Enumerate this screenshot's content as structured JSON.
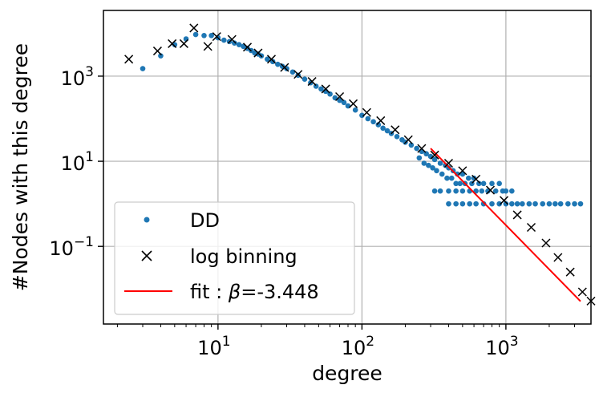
{
  "chart_data": {
    "type": "scatter",
    "title": "",
    "xlabel": "degree",
    "ylabel": "#Nodes with this degree",
    "xscale": "log",
    "yscale": "log",
    "xlim": [
      1.6,
      3900
    ],
    "ylim": [
      0.0015,
      35000
    ],
    "grid": true,
    "legend_location": "lower-left",
    "x_ticks": [
      {
        "value": 10,
        "base": "10",
        "exp": "1"
      },
      {
        "value": 100,
        "base": "10",
        "exp": "2"
      },
      {
        "value": 1000,
        "base": "10",
        "exp": "3"
      }
    ],
    "y_ticks": [
      {
        "value": 0.1,
        "base": "10",
        "exp": "−1"
      },
      {
        "value": 10,
        "base": "10",
        "exp": "1"
      },
      {
        "value": 1000,
        "base": "10",
        "exp": "3"
      }
    ],
    "series": [
      {
        "name": "DD",
        "style": "dots",
        "color": "#1f77b4",
        "points": [
          [
            3,
            1500
          ],
          [
            4,
            3000
          ],
          [
            5,
            5500
          ],
          [
            6,
            7500
          ],
          [
            7,
            9500
          ],
          [
            8,
            9000
          ],
          [
            9,
            9000
          ],
          [
            10,
            8000
          ],
          [
            11,
            7000
          ],
          [
            12,
            6500
          ],
          [
            13,
            6000
          ],
          [
            14,
            5500
          ],
          [
            15,
            5000
          ],
          [
            16,
            4500
          ],
          [
            17,
            4000
          ],
          [
            18,
            3500
          ],
          [
            19,
            3300
          ],
          [
            20,
            3000
          ],
          [
            22,
            2500
          ],
          [
            24,
            2200
          ],
          [
            26,
            1900
          ],
          [
            28,
            1700
          ],
          [
            30,
            1500
          ],
          [
            33,
            1250
          ],
          [
            36,
            1050
          ],
          [
            40,
            850
          ],
          [
            44,
            700
          ],
          [
            48,
            580
          ],
          [
            52,
            500
          ],
          [
            56,
            440
          ],
          [
            60,
            380
          ],
          [
            65,
            310
          ],
          [
            70,
            270
          ],
          [
            75,
            240
          ],
          [
            80,
            200
          ],
          [
            90,
            160
          ],
          [
            100,
            120
          ],
          [
            110,
            100
          ],
          [
            120,
            85
          ],
          [
            130,
            72
          ],
          [
            140,
            60
          ],
          [
            150,
            52
          ],
          [
            160,
            45
          ],
          [
            175,
            38
          ],
          [
            190,
            32
          ],
          [
            200,
            28
          ],
          [
            220,
            24
          ],
          [
            240,
            20
          ],
          [
            260,
            17
          ],
          [
            280,
            15
          ],
          [
            300,
            13
          ],
          [
            320,
            11
          ],
          [
            350,
            9
          ],
          [
            380,
            8
          ],
          [
            400,
            7
          ],
          [
            430,
            6
          ],
          [
            460,
            5
          ],
          [
            500,
            5
          ],
          [
            550,
            4
          ],
          [
            600,
            4
          ],
          [
            650,
            3
          ],
          [
            700,
            3
          ],
          [
            800,
            3
          ],
          [
            900,
            3
          ],
          [
            1000,
            2
          ],
          [
            1100,
            2
          ],
          [
            250,
            12
          ],
          [
            270,
            9
          ],
          [
            290,
            8
          ],
          [
            310,
            7
          ],
          [
            330,
            6
          ],
          [
            360,
            5
          ],
          [
            390,
            4
          ],
          [
            420,
            4
          ],
          [
            450,
            3
          ],
          [
            480,
            3
          ],
          [
            520,
            3
          ],
          [
            580,
            3
          ],
          [
            620,
            2
          ],
          [
            680,
            2
          ],
          [
            750,
            2
          ],
          [
            850,
            2
          ],
          [
            950,
            2
          ],
          [
            320,
            2
          ],
          [
            350,
            2
          ],
          [
            400,
            2
          ],
          [
            450,
            2
          ],
          [
            500,
            2
          ],
          [
            560,
            2
          ],
          [
            400,
            1
          ],
          [
            450,
            1
          ],
          [
            500,
            1
          ],
          [
            560,
            1
          ],
          [
            620,
            1
          ],
          [
            700,
            1
          ],
          [
            800,
            1
          ],
          [
            900,
            1
          ],
          [
            1000,
            1
          ],
          [
            1100,
            1
          ],
          [
            1200,
            1
          ],
          [
            1300,
            1
          ],
          [
            1450,
            1
          ],
          [
            1600,
            1
          ],
          [
            1800,
            1
          ],
          [
            2000,
            1
          ],
          [
            2200,
            1
          ],
          [
            2400,
            1
          ],
          [
            2700,
            1
          ],
          [
            3000,
            1
          ],
          [
            3300,
            1
          ]
        ]
      },
      {
        "name": "log binning",
        "style": "x-markers",
        "color": "#000000",
        "points": [
          [
            2.4,
            2500
          ],
          [
            3.8,
            3900
          ],
          [
            4.8,
            5800
          ],
          [
            5.8,
            5800
          ],
          [
            6.8,
            13500
          ],
          [
            8.5,
            5000
          ],
          [
            9.8,
            8500
          ],
          [
            12.5,
            7300
          ],
          [
            16,
            4800
          ],
          [
            19,
            3500
          ],
          [
            23.5,
            2500
          ],
          [
            29,
            1600
          ],
          [
            36,
            1100
          ],
          [
            45,
            750
          ],
          [
            56,
            500
          ],
          [
            70,
            330
          ],
          [
            87,
            225
          ],
          [
            108,
            140
          ],
          [
            135,
            90
          ],
          [
            170,
            55
          ],
          [
            210,
            32
          ],
          [
            260,
            20
          ],
          [
            320,
            14
          ],
          [
            400,
            9
          ],
          [
            500,
            6
          ],
          [
            620,
            3.8
          ],
          [
            780,
            2.1
          ],
          [
            970,
            1.2
          ],
          [
            1200,
            0.55
          ],
          [
            1500,
            0.28
          ],
          [
            1900,
            0.12
          ],
          [
            2300,
            0.055
          ],
          [
            2800,
            0.025
          ],
          [
            3400,
            0.0085
          ],
          [
            3900,
            0.0052
          ]
        ]
      },
      {
        "name": "fit : β=-3.448",
        "label_prefix": "fit : ",
        "label_symbol": "β",
        "label_value": "=-3.448",
        "style": "line",
        "color": "#ff0000",
        "beta": -3.448,
        "x_range": [
          300,
          3300
        ],
        "y_at_start": 20
      }
    ]
  }
}
